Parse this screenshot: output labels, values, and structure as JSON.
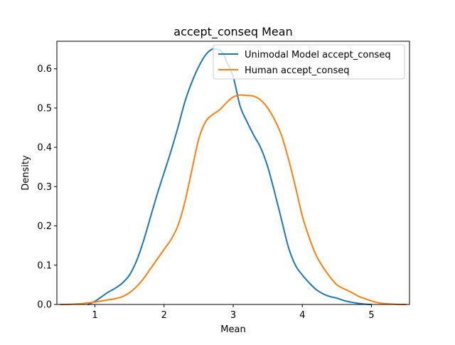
{
  "chart_data": {
    "type": "line",
    "title": "accept_conseq Mean",
    "xlabel": "Mean",
    "ylabel": "Density",
    "xlim": [
      0.45,
      5.55
    ],
    "ylim": [
      0.0,
      0.67
    ],
    "xticks": [
      1,
      2,
      3,
      4,
      5
    ],
    "yticks": [
      0.0,
      0.1,
      0.2,
      0.3,
      0.4,
      0.5,
      0.6
    ],
    "ytick_labels": [
      "0.0",
      "0.1",
      "0.2",
      "0.3",
      "0.4",
      "0.5",
      "0.6"
    ],
    "grid": false,
    "legend_position": "top-right",
    "series": [
      {
        "name": "Unimodal Model accept_conseq",
        "color": "#1f77b4",
        "x": [
          0.9,
          1.0,
          1.1,
          1.2,
          1.3,
          1.4,
          1.5,
          1.6,
          1.7,
          1.8,
          1.9,
          2.0,
          2.1,
          2.2,
          2.3,
          2.4,
          2.5,
          2.6,
          2.7,
          2.8,
          2.85,
          2.9,
          3.0,
          3.1,
          3.2,
          3.3,
          3.4,
          3.5,
          3.6,
          3.7,
          3.8,
          3.9,
          4.0,
          4.1,
          4.2,
          4.3,
          4.4,
          4.5,
          4.6,
          4.7,
          4.8,
          4.9,
          5.0
        ],
        "y": [
          0.0,
          0.008,
          0.02,
          0.032,
          0.042,
          0.055,
          0.075,
          0.11,
          0.16,
          0.22,
          0.28,
          0.335,
          0.39,
          0.45,
          0.515,
          0.565,
          0.605,
          0.635,
          0.65,
          0.648,
          0.64,
          0.62,
          0.58,
          0.505,
          0.465,
          0.43,
          0.398,
          0.35,
          0.285,
          0.215,
          0.145,
          0.1,
          0.075,
          0.055,
          0.038,
          0.027,
          0.02,
          0.016,
          0.01,
          0.006,
          0.003,
          0.001,
          0.0
        ]
      },
      {
        "name": "Human accept_conseq",
        "color": "#ff7f0e",
        "x": [
          0.5,
          0.6,
          0.7,
          0.8,
          0.9,
          1.0,
          1.1,
          1.2,
          1.3,
          1.4,
          1.5,
          1.6,
          1.7,
          1.8,
          1.9,
          2.0,
          2.1,
          2.2,
          2.3,
          2.4,
          2.5,
          2.6,
          2.7,
          2.8,
          2.9,
          3.0,
          3.1,
          3.2,
          3.3,
          3.4,
          3.5,
          3.6,
          3.7,
          3.8,
          3.9,
          4.0,
          4.1,
          4.2,
          4.3,
          4.4,
          4.5,
          4.6,
          4.7,
          4.8,
          4.9,
          5.0,
          5.1,
          5.2,
          5.3,
          5.4,
          5.5
        ],
        "y": [
          0.0,
          0.0003,
          0.001,
          0.002,
          0.004,
          0.006,
          0.009,
          0.012,
          0.015,
          0.02,
          0.03,
          0.045,
          0.065,
          0.09,
          0.115,
          0.14,
          0.165,
          0.2,
          0.26,
          0.34,
          0.42,
          0.465,
          0.483,
          0.495,
          0.513,
          0.528,
          0.533,
          0.532,
          0.53,
          0.52,
          0.5,
          0.47,
          0.43,
          0.37,
          0.3,
          0.225,
          0.17,
          0.125,
          0.095,
          0.07,
          0.05,
          0.04,
          0.032,
          0.022,
          0.015,
          0.009,
          0.004,
          0.002,
          0.001,
          0.0003,
          0.0
        ]
      }
    ]
  }
}
